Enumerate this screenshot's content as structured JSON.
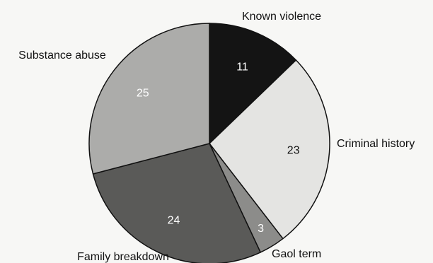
{
  "chart_data": {
    "type": "pie",
    "title": "",
    "start_angle_deg": 0,
    "direction": "clockwise",
    "legend": "none",
    "slices": [
      {
        "label": "Known violence",
        "value": 11,
        "color": "#141414",
        "value_color": "#ffffff"
      },
      {
        "label": "Criminal history",
        "value": 23,
        "color": "#e4e4e2",
        "value_color": "#111111"
      },
      {
        "label": "Gaol term",
        "value": 3,
        "color": "#8c8c8a",
        "value_color": "#ffffff"
      },
      {
        "label": "Family breakdown",
        "value": 24,
        "color": "#5a5a58",
        "value_color": "#ffffff"
      },
      {
        "label": "Substance abuse",
        "value": 25,
        "color": "#acacaa",
        "value_color": "#ffffff"
      }
    ]
  }
}
